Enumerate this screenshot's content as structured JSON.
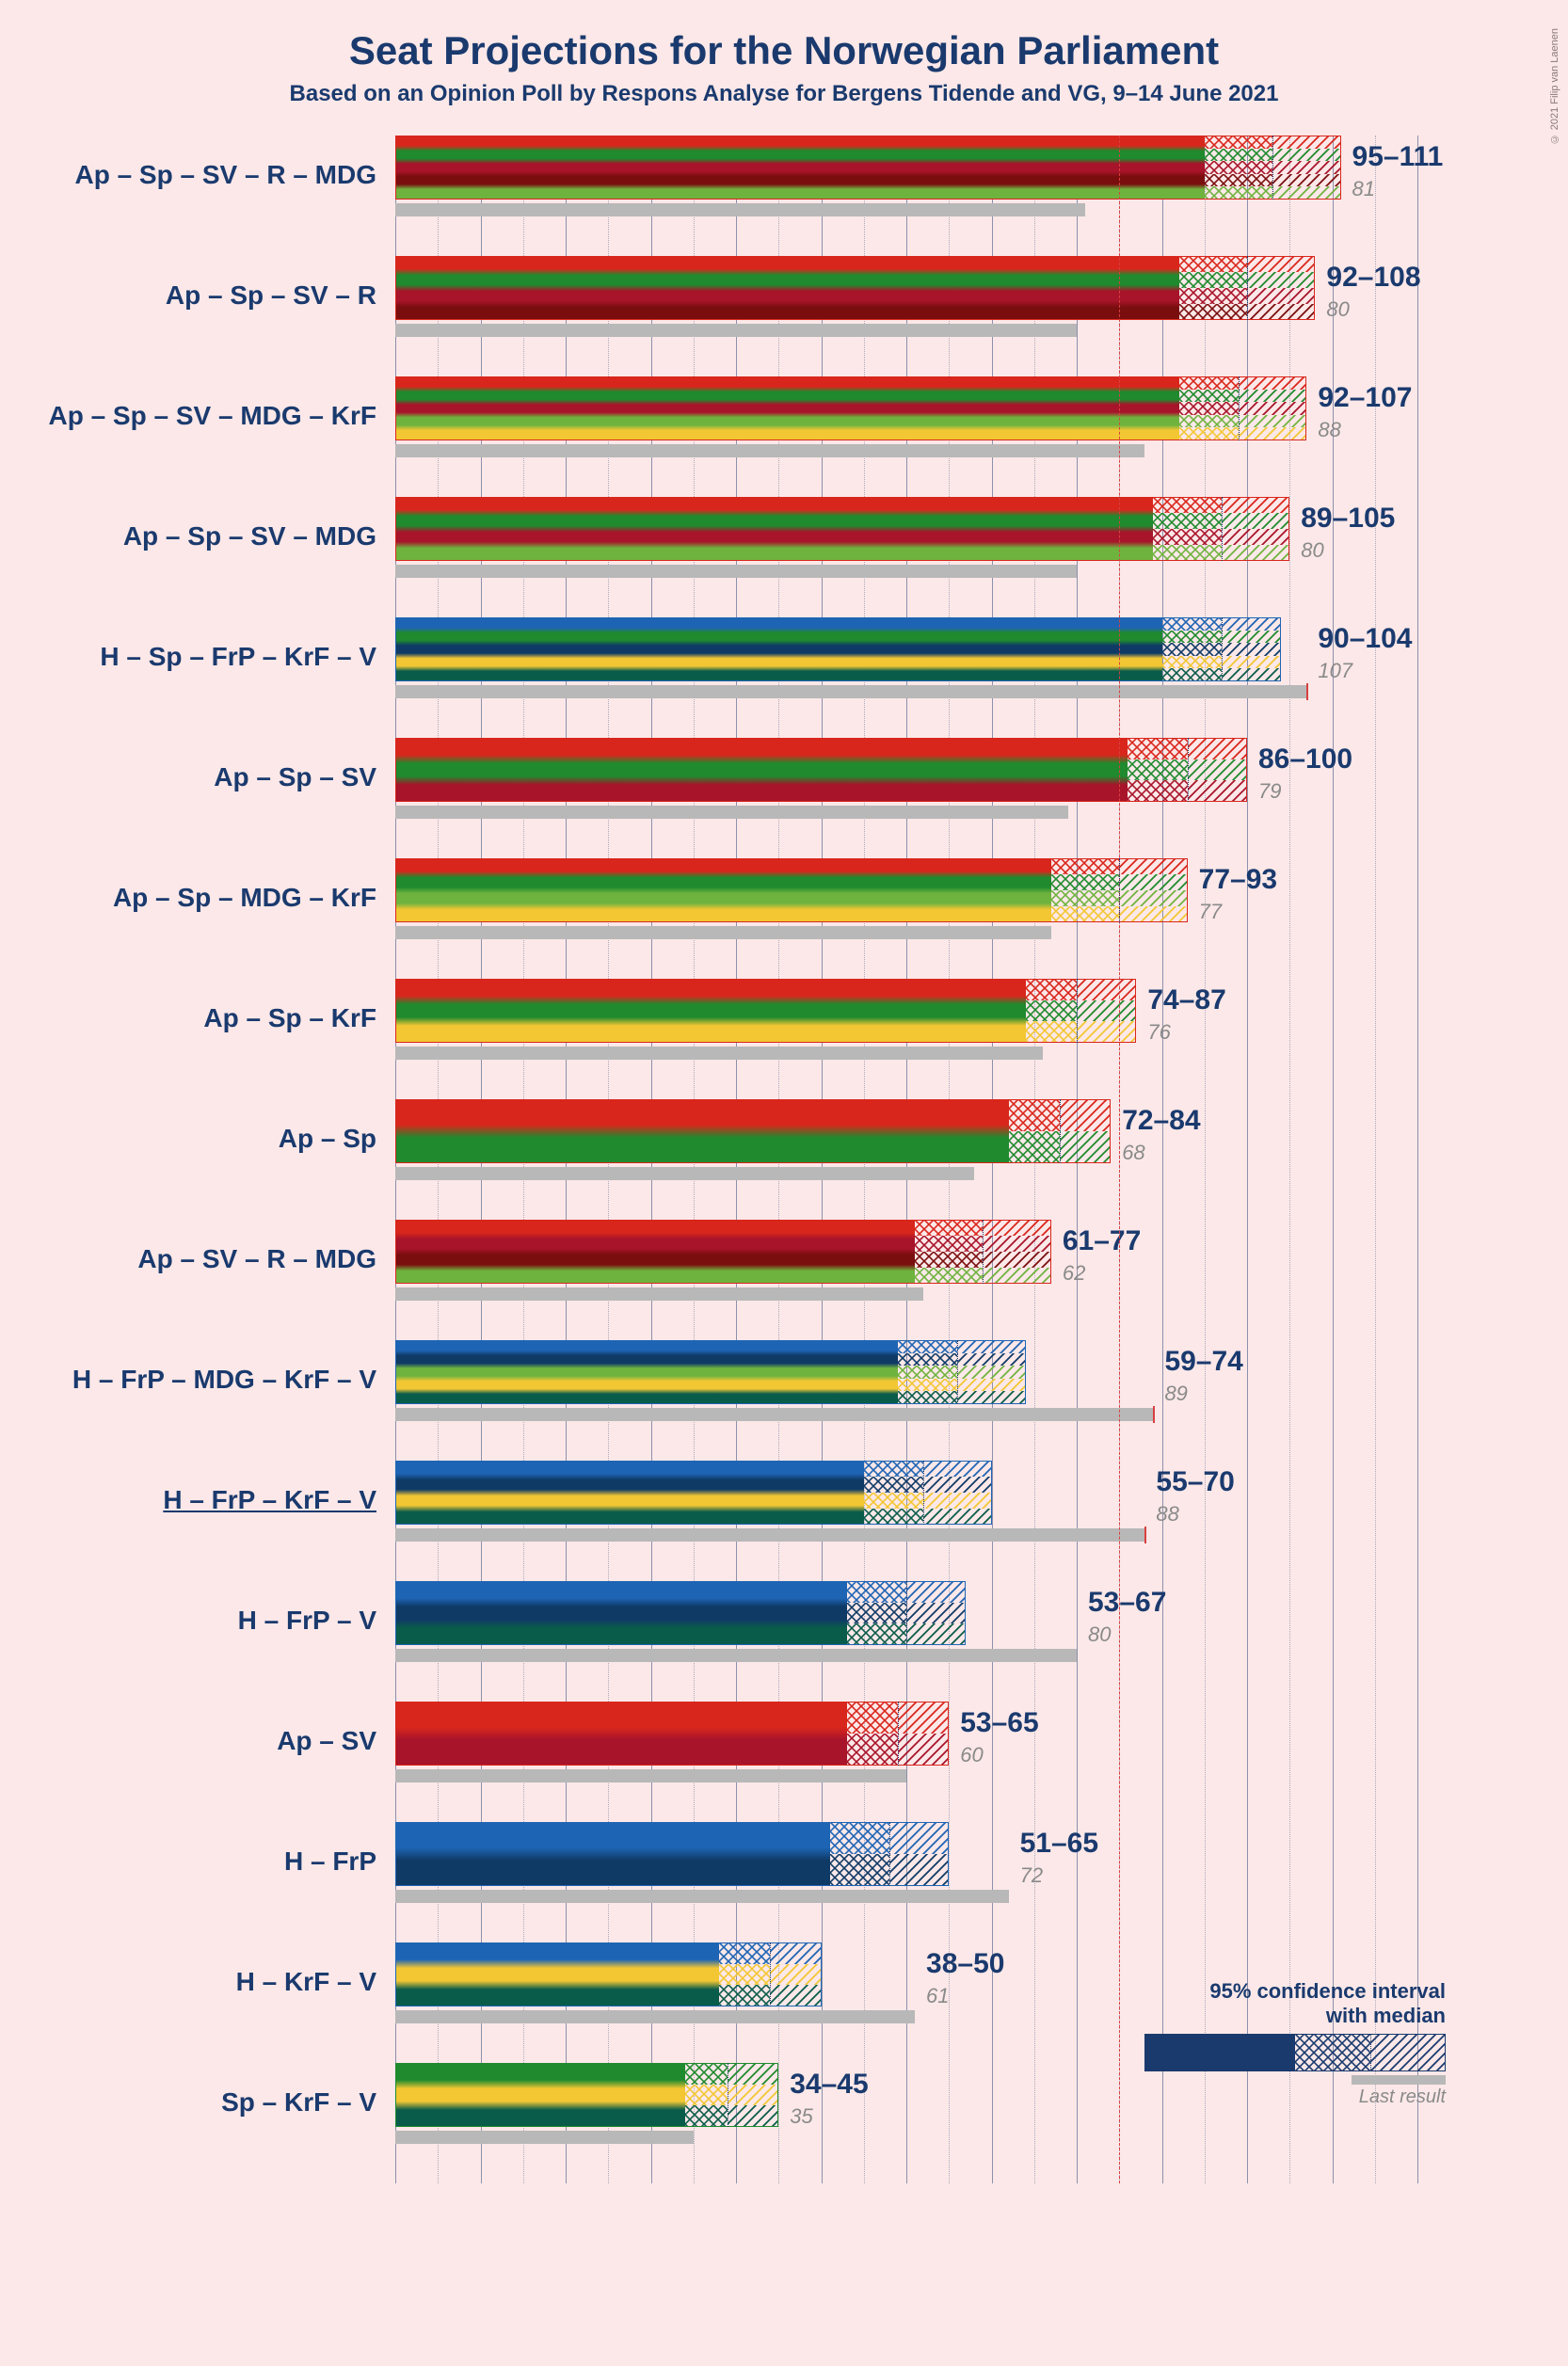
{
  "title": "Seat Projections for the Norwegian Parliament",
  "subtitle": "Based on an Opinion Poll by Respons Analyse for Bergens Tidende and VG, 9–14 June 2021",
  "copyright": "© 2021 Filip van Laenen",
  "chart": {
    "type": "bar",
    "x_max": 120,
    "grid_major_step": 10,
    "grid_minor_step": 5,
    "majority_line": 85,
    "background": "#fce8e8",
    "grid_color": "#1a3a6e",
    "text_color": "#1a3a6e",
    "last_bar_color": "#b8b8b8",
    "last_label_color": "#8a8a8a",
    "majority_color": "#d94040"
  },
  "party_colors": {
    "Ap": "#d9261c",
    "Sp": "#1f8a2e",
    "SV": "#a8142a",
    "R": "#7a0e0e",
    "MDG": "#6fb33f",
    "H": "#1e64b4",
    "FrP": "#0f3a66",
    "KrF": "#f2c733",
    "V": "#0a5c4a"
  },
  "rows": [
    {
      "label": "Ap – Sp – SV – R – MDG",
      "low": 95,
      "high": 111,
      "median": 103,
      "last": 81,
      "stripes": [
        "Ap",
        "Sp",
        "SV",
        "R",
        "MDG"
      ],
      "gradient": [
        "#d9261c",
        "#1f8a2e",
        "#a8142a",
        "#7a0e0e",
        "#6fb33f"
      ]
    },
    {
      "label": "Ap – Sp – SV – R",
      "low": 92,
      "high": 108,
      "median": 100,
      "last": 80,
      "stripes": [
        "Ap",
        "Sp",
        "SV",
        "R"
      ],
      "gradient": [
        "#d9261c",
        "#1f8a2e",
        "#a8142a",
        "#7a0e0e"
      ]
    },
    {
      "label": "Ap – Sp – SV – MDG – KrF",
      "low": 92,
      "high": 107,
      "median": 99,
      "last": 88,
      "stripes": [
        "Ap",
        "Sp",
        "SV",
        "MDG",
        "KrF"
      ],
      "gradient": [
        "#d9261c",
        "#1f8a2e",
        "#a8142a",
        "#6fb33f",
        "#f2c733"
      ]
    },
    {
      "label": "Ap – Sp – SV – MDG",
      "low": 89,
      "high": 105,
      "median": 97,
      "last": 80,
      "stripes": [
        "Ap",
        "Sp",
        "SV",
        "MDG"
      ],
      "gradient": [
        "#d9261c",
        "#1f8a2e",
        "#a8142a",
        "#6fb33f"
      ]
    },
    {
      "label": "H – Sp – FrP – KrF – V",
      "low": 90,
      "high": 104,
      "median": 97,
      "last": 107,
      "stripes": [
        "H",
        "Sp",
        "FrP",
        "KrF",
        "V"
      ],
      "gradient": [
        "#1e64b4",
        "#1f8a2e",
        "#0f3a66",
        "#f2c733",
        "#0a5c4a"
      ]
    },
    {
      "label": "Ap – Sp – SV",
      "low": 86,
      "high": 100,
      "median": 93,
      "last": 79,
      "stripes": [
        "Ap",
        "Sp",
        "SV"
      ],
      "gradient": [
        "#d9261c",
        "#1f8a2e",
        "#a8142a"
      ]
    },
    {
      "label": "Ap – Sp – MDG – KrF",
      "low": 77,
      "high": 93,
      "median": 85,
      "last": 77,
      "stripes": [
        "Ap",
        "Sp",
        "MDG",
        "KrF"
      ],
      "gradient": [
        "#d9261c",
        "#1f8a2e",
        "#6fb33f",
        "#f2c733"
      ]
    },
    {
      "label": "Ap – Sp – KrF",
      "low": 74,
      "high": 87,
      "median": 80,
      "last": 76,
      "stripes": [
        "Ap",
        "Sp",
        "KrF"
      ],
      "gradient": [
        "#d9261c",
        "#1f8a2e",
        "#f2c733"
      ]
    },
    {
      "label": "Ap – Sp",
      "low": 72,
      "high": 84,
      "median": 78,
      "last": 68,
      "stripes": [
        "Ap",
        "Sp"
      ],
      "gradient": [
        "#d9261c",
        "#1f8a2e"
      ]
    },
    {
      "label": "Ap – SV – R – MDG",
      "low": 61,
      "high": 77,
      "median": 69,
      "last": 62,
      "stripes": [
        "Ap",
        "SV",
        "R",
        "MDG"
      ],
      "gradient": [
        "#d9261c",
        "#a8142a",
        "#7a0e0e",
        "#6fb33f"
      ]
    },
    {
      "label": "H – FrP – MDG – KrF – V",
      "low": 59,
      "high": 74,
      "median": 66,
      "last": 89,
      "stripes": [
        "H",
        "FrP",
        "MDG",
        "KrF",
        "V"
      ],
      "gradient": [
        "#1e64b4",
        "#0f3a66",
        "#6fb33f",
        "#f2c733",
        "#0a5c4a"
      ]
    },
    {
      "label": "H – FrP – KrF – V",
      "low": 55,
      "high": 70,
      "median": 62,
      "last": 88,
      "stripes": [
        "H",
        "FrP",
        "KrF",
        "V"
      ],
      "gradient": [
        "#1e64b4",
        "#0f3a66",
        "#f2c733",
        "#0a5c4a"
      ],
      "underline": true
    },
    {
      "label": "H – FrP – V",
      "low": 53,
      "high": 67,
      "median": 60,
      "last": 80,
      "stripes": [
        "H",
        "FrP",
        "V"
      ],
      "gradient": [
        "#1e64b4",
        "#0f3a66",
        "#0a5c4a"
      ]
    },
    {
      "label": "Ap – SV",
      "low": 53,
      "high": 65,
      "median": 59,
      "last": 60,
      "stripes": [
        "Ap",
        "SV"
      ],
      "gradient": [
        "#d9261c",
        "#a8142a"
      ]
    },
    {
      "label": "H – FrP",
      "low": 51,
      "high": 65,
      "median": 58,
      "last": 72,
      "stripes": [
        "H",
        "FrP"
      ],
      "gradient": [
        "#1e64b4",
        "#0f3a66"
      ]
    },
    {
      "label": "H – KrF – V",
      "low": 38,
      "high": 50,
      "median": 44,
      "last": 61,
      "stripes": [
        "H",
        "KrF",
        "V"
      ],
      "gradient": [
        "#1e64b4",
        "#f2c733",
        "#0a5c4a"
      ]
    },
    {
      "label": "Sp – KrF – V",
      "low": 34,
      "high": 45,
      "median": 39,
      "last": 35,
      "stripes": [
        "Sp",
        "KrF",
        "V"
      ],
      "gradient": [
        "#1f8a2e",
        "#f2c733",
        "#0a5c4a"
      ]
    }
  ],
  "legend": {
    "line1": "95% confidence interval",
    "line2": "with median",
    "last": "Last result",
    "bar_color": "#1a3a6e"
  }
}
